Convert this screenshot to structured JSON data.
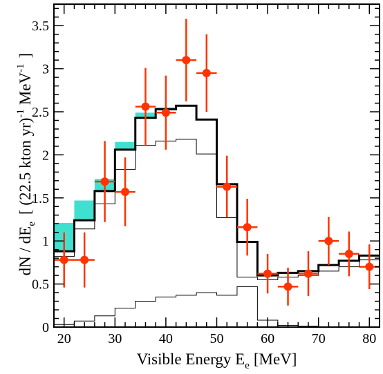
{
  "chart_data": {
    "type": "histogram",
    "xlabel": "Visible Energy E",
    "xlabel_sub": "e",
    "xlabel_unit": "[MeV]",
    "ylabel_main": "dN / dE",
    "ylabel_sub": "e",
    "ylabel_bracket_open": "[ (22.5 kton yr)",
    "ylabel_sup": "-1",
    "ylabel_unit": "MeV",
    "ylabel_sup2": "-1",
    "ylabel_bracket_close": "]",
    "xlim": [
      18,
      82
    ],
    "ylim": [
      0,
      3.75
    ],
    "x_ticks": [
      20,
      30,
      40,
      50,
      60,
      70,
      80
    ],
    "x_tick_labels": [
      "20",
      "30",
      "40",
      "50",
      "60",
      "70",
      "80"
    ],
    "y_ticks": [
      0,
      0.5,
      1,
      1.5,
      2,
      2.5,
      3,
      3.5
    ],
    "y_tick_labels": [
      "0",
      "0.5",
      "1",
      "1.5",
      "2",
      "2.5",
      "3",
      "3.5"
    ],
    "bin_edges": [
      18,
      22,
      26,
      30,
      34,
      38,
      42,
      46,
      50,
      54,
      58,
      62,
      66,
      70,
      74,
      78,
      82
    ],
    "series": [
      {
        "role": "total-fit",
        "color": "#000000",
        "values": [
          0.88,
          1.24,
          1.58,
          2.06,
          2.43,
          2.53,
          2.57,
          2.41,
          1.66,
          0.99,
          0.6,
          0.63,
          0.65,
          0.72,
          0.77,
          0.83
        ]
      },
      {
        "role": "component-1",
        "color": "#000000",
        "values": [
          0.82,
          1.14,
          1.43,
          1.83,
          2.11,
          2.16,
          2.18,
          2.01,
          1.27,
          0.58,
          0.55,
          0.58,
          0.6,
          0.65,
          0.7,
          0.78
        ]
      },
      {
        "role": "component-2",
        "color": "#000000",
        "values": [
          0.03,
          0.07,
          0.13,
          0.22,
          0.3,
          0.35,
          0.37,
          0.4,
          0.37,
          0.47,
          0.08,
          0.02,
          0.01,
          0.0,
          0.0,
          0.0
        ]
      },
      {
        "role": "uncertainty-band",
        "color": "#40e0d0",
        "lower": [
          0.88,
          1.24,
          1.58,
          2.06,
          2.43,
          2.53,
          2.57,
          2.41,
          1.66,
          0.99,
          0.6,
          0.63,
          0.65,
          0.72,
          0.77,
          0.83
        ],
        "upper": [
          1.21,
          1.47,
          1.72,
          2.15,
          2.49,
          2.55,
          2.58,
          2.41,
          1.66,
          0.99,
          0.6,
          0.63,
          0.65,
          0.72,
          0.77,
          0.83
        ]
      }
    ],
    "data_points": {
      "color": "#ff3300",
      "x": [
        20,
        24,
        28,
        32,
        36,
        40,
        44,
        48,
        52,
        56,
        60,
        64,
        68,
        72,
        76,
        80
      ],
      "xerr": 2,
      "y": [
        0.78,
        0.78,
        1.69,
        1.57,
        2.56,
        2.49,
        3.1,
        2.95,
        1.63,
        1.16,
        0.62,
        0.47,
        0.62,
        1.0,
        0.85,
        0.7
      ],
      "yerr": [
        0.32,
        0.32,
        0.47,
        0.4,
        0.45,
        0.43,
        0.48,
        0.45,
        0.36,
        0.33,
        0.23,
        0.22,
        0.26,
        0.28,
        0.26,
        0.26
      ]
    }
  }
}
